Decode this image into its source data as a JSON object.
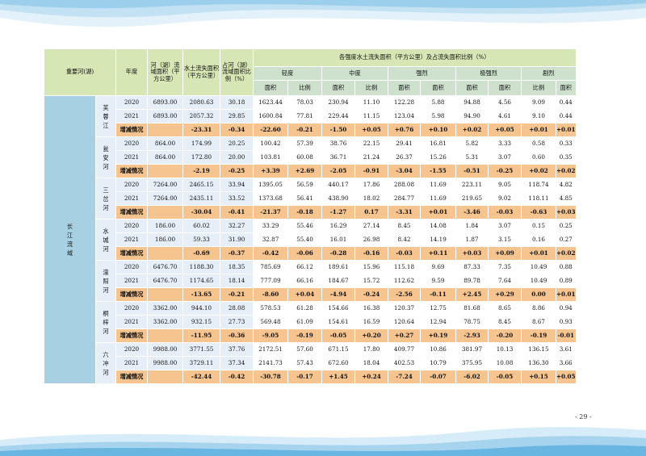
{
  "page_number": "- 29 -",
  "header": {
    "key_river": "重要河(湖)",
    "year": "年度",
    "river_area": "河（湖）流域面积（平方公里）",
    "loss_area": "水土流失面积（平方公里）",
    "ratio": "占河（湖）流域面积比例（%）",
    "group_title": "各强度水土流失面积（平方公里）及占流失面积比例（%）",
    "intensities": [
      "轻度",
      "中度",
      "强烈",
      "极强烈",
      "剧烈"
    ],
    "sub_labels": [
      "面积",
      "比例",
      "面积",
      "比例",
      "面积",
      "面积",
      "面积",
      "面积",
      "比例",
      "面积"
    ]
  },
  "basin": "长江流域",
  "rivers": [
    {
      "name": "芙蓉江",
      "rows": [
        {
          "year": "2020",
          "values": [
            "6893.00",
            "2080.63",
            "30.18",
            "1623.44",
            "78.03",
            "230.94",
            "11.10",
            "122.28",
            "5.88",
            "94.88",
            "4.56",
            "9.09",
            "0.44"
          ]
        },
        {
          "year": "2021",
          "values": [
            "6893.00",
            "2057.32",
            "29.85",
            "1600.84",
            "77.81",
            "229.44",
            "11.15",
            "123.04",
            "5.98",
            "94.90",
            "4.61",
            "9.10",
            "0.44"
          ]
        },
        {
          "year": "增减情况",
          "values": [
            "",
            "-23.31",
            "-0.34",
            "-22.60",
            "-0.21",
            "-1.50",
            "+0.05",
            "+0.76",
            "+0.10",
            "+0.02",
            "+0.05",
            "+0.01",
            "+0.01"
          ]
        }
      ]
    },
    {
      "name": "瓮安河",
      "rows": [
        {
          "year": "2020",
          "values": [
            "864.00",
            "174.99",
            "20.25",
            "100.42",
            "57.39",
            "38.76",
            "22.15",
            "29.41",
            "16.81",
            "5.82",
            "3.33",
            "0.58",
            "0.33"
          ]
        },
        {
          "year": "2021",
          "values": [
            "864.00",
            "172.80",
            "20.00",
            "103.81",
            "60.08",
            "36.71",
            "21.24",
            "26.37",
            "15.26",
            "5.31",
            "3.07",
            "0.60",
            "0.35"
          ]
        },
        {
          "year": "增减情况",
          "values": [
            "",
            "-2.19",
            "-0.25",
            "+3.39",
            "+2.69",
            "-2.05",
            "-0.91",
            "-3.04",
            "-1.55",
            "-0.51",
            "-0.25",
            "+0.02",
            "+0.02"
          ]
        }
      ]
    },
    {
      "name": "三岔河",
      "rows": [
        {
          "year": "2020",
          "values": [
            "7264.00",
            "2465.15",
            "33.94",
            "1395.05",
            "56.59",
            "440.17",
            "17.86",
            "288.08",
            "11.69",
            "223.11",
            "9.05",
            "118.74",
            "4.82"
          ]
        },
        {
          "year": "2021",
          "values": [
            "7264.00",
            "2435.11",
            "33.52",
            "1373.68",
            "56.41",
            "438.90",
            "18.02",
            "284.77",
            "11.69",
            "219.65",
            "9.02",
            "118.11",
            "4.85"
          ]
        },
        {
          "year": "增减情况",
          "values": [
            "",
            "-30.04",
            "-0.41",
            "-21.37",
            "-0.18",
            "-1.27",
            "0.17",
            "-3.31",
            "+0.01",
            "-3.46",
            "-0.03",
            "-0.63",
            "+0.03"
          ]
        }
      ]
    },
    {
      "name": "水城河",
      "rows": [
        {
          "year": "2020",
          "values": [
            "186.00",
            "60.02",
            "32.27",
            "33.29",
            "55.46",
            "16.29",
            "27.14",
            "8.45",
            "14.08",
            "1.84",
            "3.07",
            "0.15",
            "0.25"
          ]
        },
        {
          "year": "2021",
          "values": [
            "186.00",
            "59.33",
            "31.90",
            "32.87",
            "55.40",
            "16.01",
            "26.98",
            "8.42",
            "14.19",
            "1.87",
            "3.15",
            "0.16",
            "0.27"
          ]
        },
        {
          "year": "增减情况",
          "values": [
            "",
            "-0.69",
            "-0.37",
            "-0.42",
            "-0.06",
            "-0.28",
            "-0.16",
            "-0.03",
            "+0.11",
            "+0.03",
            "+0.09",
            "+0.01",
            "+0.02"
          ]
        }
      ]
    },
    {
      "name": "濛阳河",
      "rows": [
        {
          "year": "2020",
          "values": [
            "6476.70",
            "1188.30",
            "18.35",
            "785.69",
            "66.12",
            "189.61",
            "15.96",
            "115.18",
            "9.69",
            "87.33",
            "7.35",
            "10.49",
            "0.88"
          ]
        },
        {
          "year": "2021",
          "values": [
            "6476.70",
            "1174.65",
            "18.14",
            "777.09",
            "66.16",
            "184.67",
            "15.72",
            "112.62",
            "9.59",
            "89.78",
            "7.64",
            "10.49",
            "0.89"
          ]
        },
        {
          "year": "增减情况",
          "values": [
            "",
            "-13.65",
            "-0.21",
            "-8.60",
            "+0.04",
            "-4.94",
            "-0.24",
            "-2.56",
            "-0.11",
            "+2.45",
            "+0.29",
            "0.00",
            "+0.01"
          ]
        }
      ]
    },
    {
      "name": "桐梓河",
      "rows": [
        {
          "year": "2020",
          "values": [
            "3362.00",
            "944.10",
            "28.08",
            "578.53",
            "61.28",
            "154.66",
            "16.38",
            "120.37",
            "12.75",
            "81.68",
            "8.65",
            "8.86",
            "0.94"
          ]
        },
        {
          "year": "2021",
          "values": [
            "3362.00",
            "932.15",
            "27.73",
            "569.48",
            "61.09",
            "154.61",
            "16.59",
            "120.64",
            "12.94",
            "78.75",
            "8.45",
            "8.67",
            "0.93"
          ]
        },
        {
          "year": "增减情况",
          "values": [
            "",
            "-11.95",
            "-0.36",
            "-9.05",
            "-0.19",
            "-0.05",
            "+0.20",
            "+0.27",
            "+0.19",
            "-2.93",
            "-0.20",
            "-0.19",
            "-0.01"
          ]
        }
      ]
    },
    {
      "name": "六冲河",
      "rows": [
        {
          "year": "2020",
          "values": [
            "9988.00",
            "3771.55",
            "37.76",
            "2172.51",
            "57.60",
            "671.15",
            "17.80",
            "409.77",
            "10.86",
            "381.97",
            "10.13",
            "136.15",
            "3.61"
          ]
        },
        {
          "year": "2021",
          "values": [
            "9988.00",
            "3729.11",
            "37.34",
            "2141.73",
            "57.43",
            "672.60",
            "18.04",
            "402.53",
            "10.79",
            "375.95",
            "10.08",
            "136.30",
            "3.66"
          ]
        },
        {
          "year": "增减情况",
          "values": [
            "",
            "-42.44",
            "-0.42",
            "-30.78",
            "-0.17",
            "+1.45",
            "+0.24",
            "-7.24",
            "-0.07",
            "-6.02",
            "-0.05",
            "+0.15",
            "+0.05"
          ]
        }
      ]
    }
  ]
}
